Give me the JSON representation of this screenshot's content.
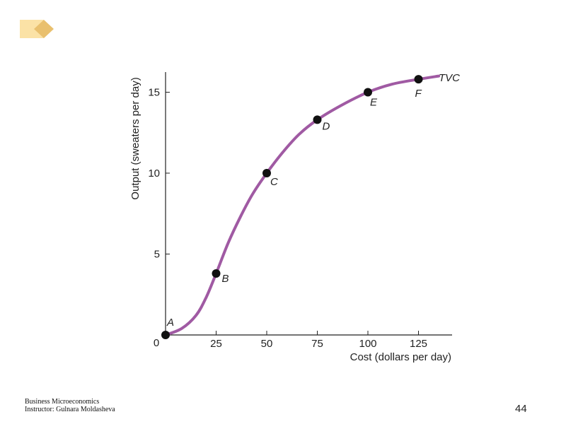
{
  "chart_data": {
    "type": "line",
    "xlabel": "Cost (dollars per day)",
    "ylabel": "Output (sweaters per day)",
    "x_ticks": [
      25,
      50,
      75,
      100,
      125
    ],
    "y_ticks": [
      5,
      10,
      15
    ],
    "origin_label": "0",
    "xlim": [
      0,
      140
    ],
    "ylim": [
      0,
      16.5
    ],
    "series": [
      {
        "name": "TVC",
        "color": "#a05aa3",
        "curve": [
          {
            "x": 0,
            "y": 0
          },
          {
            "x": 8,
            "y": 0.4
          },
          {
            "x": 15,
            "y": 1.2
          },
          {
            "x": 20,
            "y": 2.3
          },
          {
            "x": 25,
            "y": 3.8
          },
          {
            "x": 31,
            "y": 5.7
          },
          {
            "x": 37,
            "y": 7.3
          },
          {
            "x": 43,
            "y": 8.7
          },
          {
            "x": 50,
            "y": 10.0
          },
          {
            "x": 58,
            "y": 11.3
          },
          {
            "x": 66,
            "y": 12.4
          },
          {
            "x": 75,
            "y": 13.3
          },
          {
            "x": 87,
            "y": 14.2
          },
          {
            "x": 100,
            "y": 15.0
          },
          {
            "x": 112,
            "y": 15.5
          },
          {
            "x": 125,
            "y": 15.8
          },
          {
            "x": 135,
            "y": 16.0
          }
        ],
        "points": [
          {
            "label": "A",
            "x": 0,
            "y": 0
          },
          {
            "label": "B",
            "x": 25,
            "y": 3.8
          },
          {
            "label": "C",
            "x": 50,
            "y": 10.0
          },
          {
            "label": "D",
            "x": 75,
            "y": 13.3
          },
          {
            "label": "E",
            "x": 100,
            "y": 15.0
          },
          {
            "label": "F",
            "x": 125,
            "y": 15.8
          }
        ]
      }
    ]
  },
  "deco": {
    "color_light": "#fbe2a6",
    "color_dark": "#e9c06e"
  },
  "footer": {
    "line1": "Business Microeconomics",
    "line2": "Instructor: Gulnara Moldasheva"
  },
  "page_number": "44"
}
